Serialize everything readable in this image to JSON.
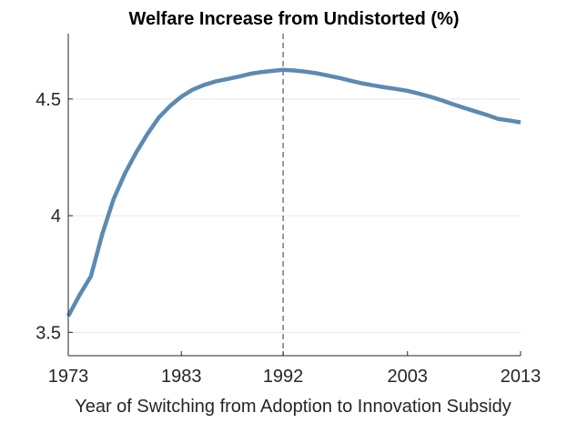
{
  "chart_data": {
    "type": "line",
    "title": "Welfare Increase from Undistorted (%)",
    "xlabel": "Year of Switching from Adoption to Innovation Subsidy",
    "ylabel": "",
    "xlim": [
      1973,
      2013
    ],
    "ylim": [
      3.4,
      4.78
    ],
    "xticks": [
      1973,
      1983,
      1992,
      2003,
      2013
    ],
    "yticks": [
      3.5,
      4,
      4.5
    ],
    "ytick_labels": [
      "3.5",
      "4",
      "4.5"
    ],
    "grid": "horizontal",
    "vline": {
      "x": 1992,
      "style": "dashed"
    },
    "series": [
      {
        "name": "",
        "color": "#5b8ab2",
        "x": [
          1973,
          1974,
          1975,
          1976,
          1977,
          1978,
          1979,
          1980,
          1981,
          1982,
          1983,
          1984,
          1985,
          1986,
          1987,
          1988,
          1989,
          1990,
          1991,
          1992,
          1993,
          1994,
          1995,
          1996,
          1997,
          1998,
          1999,
          2000,
          2001,
          2002,
          2003,
          2004,
          2005,
          2006,
          2007,
          2008,
          2009,
          2010,
          2011,
          2012,
          2013
        ],
        "y": [
          3.57,
          3.66,
          3.74,
          3.92,
          4.07,
          4.18,
          4.27,
          4.35,
          4.42,
          4.47,
          4.51,
          4.54,
          4.56,
          4.575,
          4.585,
          4.595,
          4.607,
          4.615,
          4.62,
          4.625,
          4.622,
          4.617,
          4.61,
          4.6,
          4.59,
          4.578,
          4.567,
          4.558,
          4.55,
          4.543,
          4.535,
          4.523,
          4.51,
          4.495,
          4.478,
          4.462,
          4.447,
          4.432,
          4.415,
          4.408,
          4.4
        ]
      }
    ]
  },
  "colors": {
    "series": "#5b8ab2",
    "axis": "#262626",
    "grid": "#e6e6e6",
    "vline": "#555555"
  }
}
